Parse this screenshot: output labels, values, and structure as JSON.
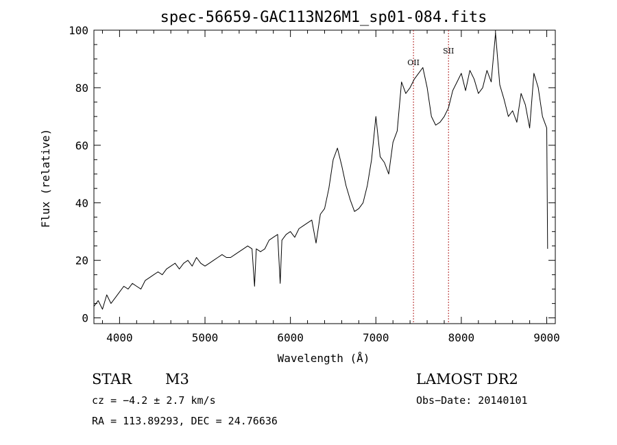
{
  "chart_data": {
    "type": "line",
    "title": "spec-56659-GAC113N26M1_sp01-084.fits",
    "xlabel": "Wavelength (Å)",
    "ylabel": "Flux (relative)",
    "xlim": [
      3700,
      9100
    ],
    "ylim": [
      -2,
      100
    ],
    "xticks": [
      4000,
      5000,
      6000,
      7000,
      8000,
      9000
    ],
    "yticks": [
      0,
      20,
      40,
      60,
      80,
      100
    ],
    "grid": false,
    "series": [
      {
        "x": [
          3700,
          3750,
          3800,
          3850,
          3900,
          3950,
          4000,
          4050,
          4100,
          4150,
          4200,
          4250,
          4300,
          4350,
          4400,
          4450,
          4500,
          4550,
          4600,
          4650,
          4700,
          4750,
          4800,
          4850,
          4900,
          4950,
          5000,
          5050,
          5100,
          5150,
          5200,
          5250,
          5300,
          5350,
          5400,
          5450,
          5500,
          5550,
          5580,
          5600,
          5650,
          5700,
          5750,
          5800,
          5850,
          5880,
          5900,
          5950,
          6000,
          6050,
          6100,
          6150,
          6200,
          6250,
          6300,
          6350,
          6400,
          6450,
          6500,
          6550,
          6600,
          6650,
          6700,
          6750,
          6800,
          6850,
          6900,
          6950,
          7000,
          7050,
          7100,
          7150,
          7200,
          7250,
          7300,
          7350,
          7400,
          7450,
          7500,
          7550,
          7600,
          7650,
          7700,
          7750,
          7800,
          7850,
          7900,
          7950,
          8000,
          8050,
          8100,
          8150,
          8200,
          8250,
          8300,
          8350,
          8400,
          8450,
          8500,
          8550,
          8600,
          8650,
          8700,
          8750,
          8800,
          8850,
          8900,
          8950,
          9000,
          9010
        ],
        "y": [
          4,
          6,
          3,
          8,
          5,
          7,
          9,
          11,
          10,
          12,
          11,
          10,
          13,
          14,
          15,
          16,
          15,
          17,
          18,
          19,
          17,
          19,
          20,
          18,
          21,
          19,
          18,
          19,
          20,
          21,
          22,
          21,
          21,
          22,
          23,
          24,
          25,
          24,
          11,
          24,
          23,
          24,
          27,
          28,
          29,
          12,
          27,
          29,
          30,
          28,
          31,
          32,
          33,
          34,
          26,
          36,
          38,
          45,
          55,
          59,
          53,
          46,
          41,
          37,
          38,
          40,
          46,
          55,
          70,
          56,
          54,
          50,
          61,
          65,
          82,
          78,
          80,
          83,
          85,
          87,
          80,
          70,
          67,
          68,
          70,
          73,
          79,
          82,
          85,
          79,
          86,
          83,
          78,
          80,
          86,
          82,
          99,
          81,
          76,
          70,
          72,
          68,
          78,
          74,
          66,
          85,
          80,
          70,
          66,
          24
        ],
        "color": "#000000"
      }
    ],
    "vlines": [
      {
        "x": 7440,
        "label": "OII",
        "color": "#b22222"
      },
      {
        "x": 7850,
        "label": "SII",
        "color": "#b22222"
      }
    ]
  },
  "info": {
    "object_class": "STAR",
    "subclass": "M3",
    "survey": "LAMOST DR2",
    "cz": "cz = −4.2 ± 2.7 km/s",
    "obs_date": "Obs−Date: 20140101",
    "coords": "RA = 113.89293, DEC =  24.76636"
  }
}
